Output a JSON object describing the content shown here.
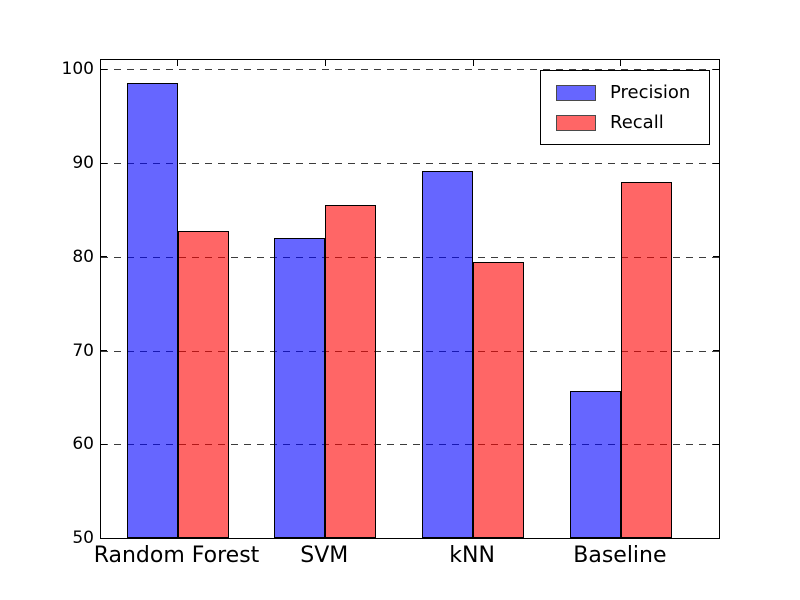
{
  "chart_data": {
    "type": "bar",
    "title": "",
    "xlabel": "",
    "ylabel": "",
    "categories": [
      "Random Forest",
      "SVM",
      "kNN",
      "Baseline"
    ],
    "series": [
      {
        "name": "Precision",
        "color": "#0000ff",
        "alpha": 0.6,
        "values": [
          98.5,
          82.0,
          89.2,
          65.7
        ]
      },
      {
        "name": "Recall",
        "color": "#ff0000",
        "alpha": 0.6,
        "values": [
          82.8,
          85.5,
          79.5,
          88.0
        ]
      }
    ],
    "ylim": [
      50,
      101
    ],
    "yticks": [
      50,
      60,
      70,
      80,
      90,
      100
    ],
    "grid": true,
    "grid_style": "dashed",
    "legend_position": "upper right",
    "bar_edge_color": "#000000",
    "background": "#ffffff"
  },
  "legend": {
    "items": [
      {
        "label": "Precision"
      },
      {
        "label": "Recall"
      }
    ]
  }
}
